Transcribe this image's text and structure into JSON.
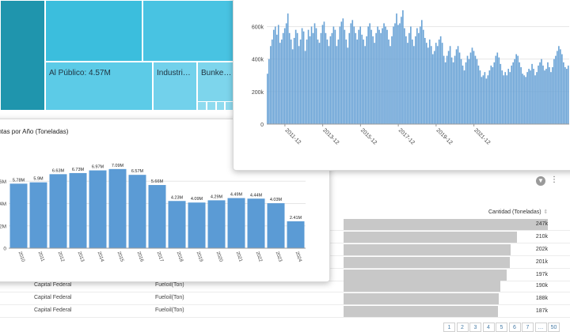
{
  "treemap": {
    "cells": [
      {
        "label": "",
        "color": "#1f95ad"
      },
      {
        "label": "",
        "color": "#3bbedd"
      },
      {
        "label": "",
        "color": "#48c3e2"
      },
      {
        "label": "Al Público: 4.57M",
        "color": "#5ccbe7"
      },
      {
        "label": "Industri…",
        "color": "#72d1eb"
      },
      {
        "label": "Bunke…",
        "color": "#7dd5ec"
      }
    ]
  },
  "monthly_chart": {
    "y_ticks": [
      "0",
      "200k",
      "400k",
      "600k"
    ],
    "x_ticks": [
      "2011-12",
      "2013-12",
      "2015-12",
      "2017-12",
      "2019-12",
      "2021-12"
    ]
  },
  "yearly_chart": {
    "title": "entas por Año (Toneladas)",
    "y_ticks": [
      "0",
      "2M",
      "4M",
      "6M"
    ]
  },
  "table": {
    "quantity_header": "Cantidad (Toneladas)",
    "rows": [
      {
        "province": "",
        "product": "",
        "value": "247k",
        "fraction": 1.0
      },
      {
        "province": "",
        "product": "",
        "value": "210k",
        "fraction": 0.85
      },
      {
        "province": "",
        "product": "",
        "value": "202k",
        "fraction": 0.818
      },
      {
        "province": "",
        "product": "",
        "value": "201k",
        "fraction": 0.814
      },
      {
        "province": "",
        "product": "",
        "value": "197k",
        "fraction": 0.798
      },
      {
        "province": "Capital Federal",
        "product": "Fueloil(Ton)",
        "value": "190k",
        "fraction": 0.769
      },
      {
        "province": "Capital Federal",
        "product": "Fueloil(Ton)",
        "value": "188k",
        "fraction": 0.761
      },
      {
        "province": "Capital Federal",
        "product": "Fueloil(Ton)",
        "value": "187k",
        "fraction": 0.757
      }
    ],
    "pagination": [
      "1",
      "2",
      "3",
      "4",
      "5",
      "6",
      "7",
      "…",
      "50"
    ]
  },
  "colors": {
    "bar": "#5b9bd5",
    "bar_monthly": "#6aa3d6",
    "grid": "#e6e6e6"
  },
  "icons": {
    "filter": "filter-icon",
    "more": "more-vertical-icon"
  },
  "chart_data": [
    {
      "type": "bar",
      "title": "",
      "xlabel": "",
      "ylabel": "",
      "ylim": [
        0,
        700000
      ],
      "x_range": [
        "2011-01",
        "2024-12"
      ],
      "values": [
        310000,
        400000,
        480000,
        520000,
        580000,
        600000,
        550000,
        610000,
        500000,
        520000,
        560000,
        590000,
        620000,
        680000,
        560000,
        520000,
        460000,
        530000,
        580000,
        560000,
        480000,
        520000,
        590000,
        570000,
        450000,
        520000,
        580000,
        540000,
        600000,
        560000,
        620000,
        590000,
        520000,
        500000,
        560000,
        610000,
        630000,
        560000,
        520000,
        480000,
        540000,
        560000,
        600000,
        580000,
        480000,
        520000,
        600000,
        630000,
        650000,
        580000,
        520000,
        470000,
        560000,
        620000,
        640000,
        600000,
        560000,
        520000,
        580000,
        600000,
        550000,
        520000,
        480000,
        540000,
        600000,
        620000,
        580000,
        540000,
        500000,
        560000,
        600000,
        580000,
        560000,
        590000,
        620000,
        600000,
        580000,
        520000,
        480000,
        540000,
        600000,
        620000,
        680000,
        610000,
        620000,
        660000,
        700000,
        590000,
        540000,
        500000,
        560000,
        600000,
        520000,
        480000,
        540000,
        590000,
        560000,
        600000,
        640000,
        580000,
        530000,
        500000,
        470000,
        520000,
        480000,
        430000,
        450000,
        500000,
        480000,
        520000,
        540000,
        500000,
        420000,
        380000,
        420000,
        450000,
        480000,
        410000,
        380000,
        420000,
        460000,
        480000,
        440000,
        400000,
        360000,
        330000,
        380000,
        420000,
        400000,
        440000,
        470000,
        450000,
        420000,
        400000,
        360000,
        330000,
        290000,
        300000,
        320000,
        280000,
        300000,
        330000,
        360000,
        350000,
        380000,
        420000,
        440000,
        410000,
        370000,
        330000,
        300000,
        320000,
        300000,
        340000,
        320000,
        360000,
        380000,
        400000,
        430000,
        420000,
        380000,
        350000,
        310000,
        300000,
        290000,
        320000,
        340000,
        330000,
        370000,
        340000,
        300000,
        320000,
        360000,
        380000,
        400000,
        360000,
        330000,
        340000,
        380000,
        350000,
        320000,
        350000,
        400000,
        420000,
        450000,
        480000,
        460000,
        430000,
        380000,
        350000,
        340000,
        360000
      ]
    },
    {
      "type": "bar",
      "title": "entas por Año (Toneladas)",
      "xlabel": "",
      "ylabel": "",
      "ylim": [
        0,
        8000000
      ],
      "categories": [
        "2010",
        "2011",
        "2012",
        "2013",
        "2014",
        "2015",
        "2016",
        "2017",
        "2018",
        "2019",
        "2020",
        "2021",
        "2022",
        "2023",
        "2024"
      ],
      "values": [
        5780000,
        5900000,
        6630000,
        6730000,
        6970000,
        7090000,
        6570000,
        5660000,
        4230000,
        4090000,
        4290000,
        4490000,
        4440000,
        4030000,
        2410000
      ],
      "data_labels": [
        "5.78M",
        "5.9M",
        "6.63M",
        "6.73M",
        "6.97M",
        "7.09M",
        "6.57M",
        "5.66M",
        "4.23M",
        "4.09M",
        "4.29M",
        "4.49M",
        "4.44M",
        "4.03M",
        "2.41M"
      ]
    }
  ]
}
